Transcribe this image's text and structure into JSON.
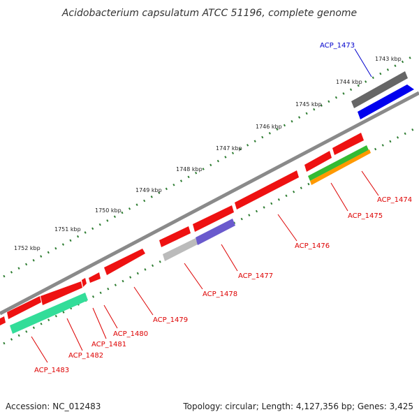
{
  "title": "Acidobacterium capsulatum ATCC 51196, complete genome",
  "footer": {
    "accession": "Accession: NC_012483",
    "summary": "Topology: circular; Length: 4,127,356 bp; Genes: 3,425"
  },
  "scale_labels": [
    "1743 kbp",
    "1744 kbp",
    "1745 kbp",
    "1746 kbp",
    "1747 kbp",
    "1748 kbp",
    "1749 kbp",
    "1750 kbp",
    "1751 kbp",
    "1752 kbp"
  ],
  "gene_labels": [
    {
      "text": "ACP_1473",
      "color": "#0000cc"
    },
    {
      "text": "ACP_1474",
      "color": "#dd0000"
    },
    {
      "text": "ACP_1475",
      "color": "#dd0000"
    },
    {
      "text": "ACP_1476",
      "color": "#dd0000"
    },
    {
      "text": "ACP_1477",
      "color": "#dd0000"
    },
    {
      "text": "ACP_1478",
      "color": "#dd0000"
    },
    {
      "text": "ACP_1479",
      "color": "#dd0000"
    },
    {
      "text": "ACP_1480",
      "color": "#dd0000"
    },
    {
      "text": "ACP_1481",
      "color": "#dd0000"
    },
    {
      "text": "ACP_1482",
      "color": "#dd0000"
    },
    {
      "text": "ACP_1483",
      "color": "#dd0000"
    }
  ],
  "colors": {
    "backbone": "#808080",
    "scale_ticks": "#2e7d32",
    "gene_red": "#ee1111",
    "gene_dark_gray": "#666666",
    "gene_blue": "#0000ee",
    "gene_green": "#33bb33",
    "gene_orange": "#ff9900",
    "gene_light_gray": "#bbbbbb",
    "gene_purple": "#6a5acd",
    "gene_teal": "#33dd99"
  }
}
